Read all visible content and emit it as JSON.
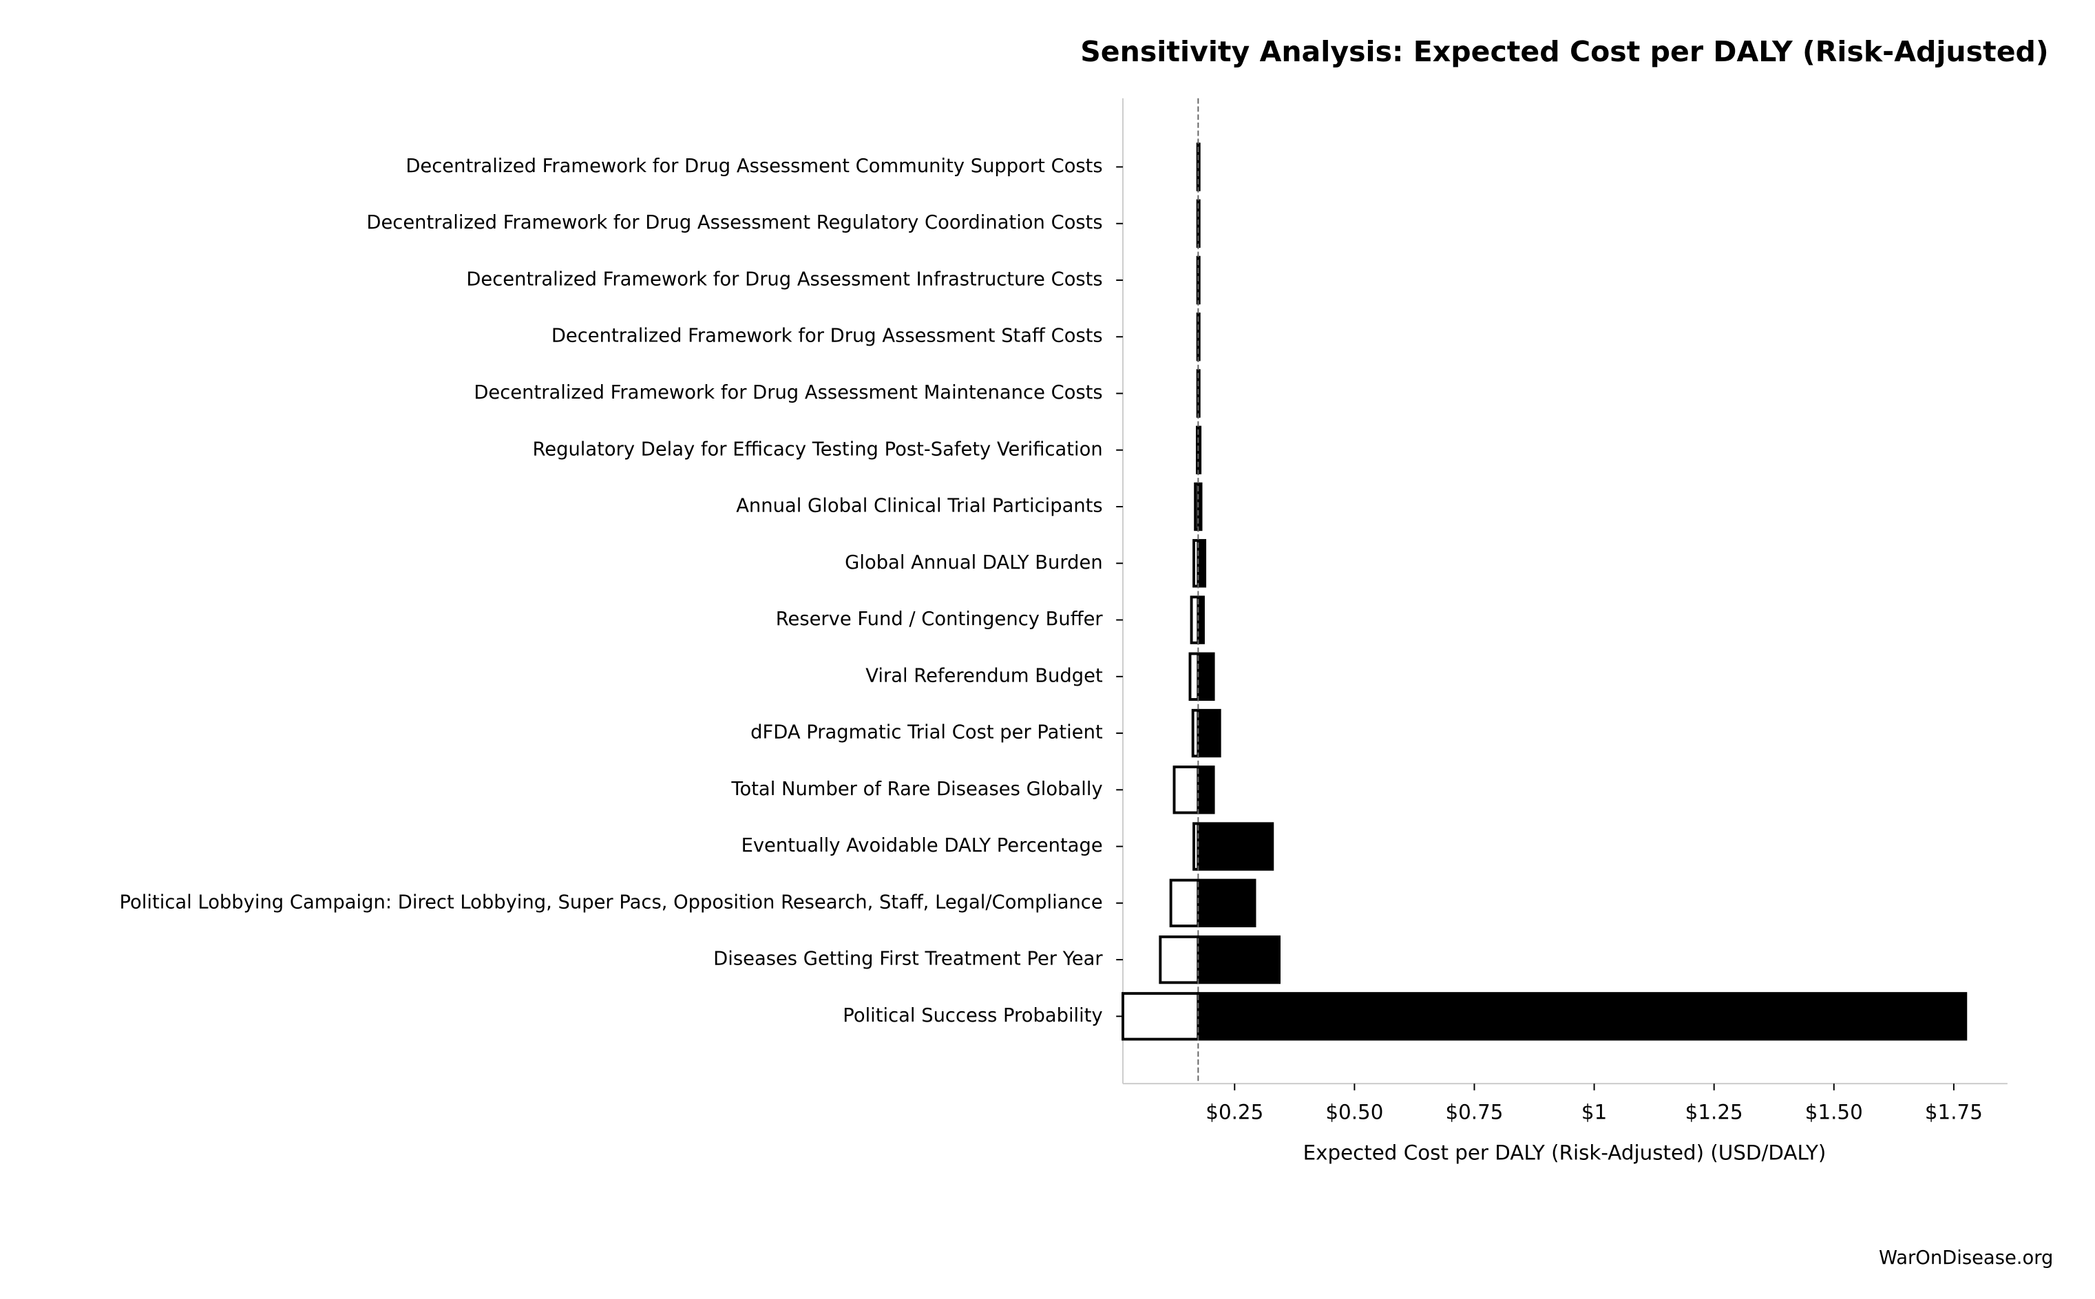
{
  "chart_data": {
    "type": "tornado",
    "title": "Sensitivity Analysis: Expected Cost per DALY (Risk-Adjusted)",
    "xlabel": "Expected Cost per DALY (Risk-Adjusted) (USD/DALY)",
    "footer": "WarOnDisease.org",
    "categories": [
      "Decentralized Framework for Drug Assessment Community Support Costs",
      "Decentralized Framework for Drug Assessment Regulatory Coordination Costs",
      "Decentralized Framework for Drug Assessment Infrastructure Costs",
      "Decentralized Framework for Drug Assessment Staff Costs",
      "Decentralized Framework for Drug Assessment Maintenance Costs",
      "Regulatory Delay for Efficacy Testing Post-Safety Verification",
      "Annual Global Clinical Trial Participants",
      "Global Annual DALY Burden",
      "Reserve Fund / Contingency Buffer",
      "Viral Referendum Budget",
      "dFDA Pragmatic Trial Cost per Patient",
      "Total Number of Rare Diseases Globally",
      "Eventually Avoidable DALY Percentage",
      "Political Lobbying Campaign: Direct Lobbying, Super Pacs, Opposition Research, Staff, Legal/Compliance",
      "Diseases Getting First Treatment Per Year",
      "Political Success Probability"
    ],
    "low_values": [
      0.173,
      0.173,
      0.173,
      0.173,
      0.173,
      0.172,
      0.168,
      0.165,
      0.16,
      0.157,
      0.163,
      0.124,
      0.165,
      0.117,
      0.095,
      0.017
    ],
    "high_values": [
      0.176,
      0.176,
      0.176,
      0.176,
      0.176,
      0.178,
      0.18,
      0.188,
      0.185,
      0.206,
      0.219,
      0.206,
      0.329,
      0.292,
      0.343,
      1.775
    ],
    "baseline": 0.174,
    "low_color": "#ffffff",
    "high_color": "#000000",
    "xlim": [
      0.017,
      1.862
    ],
    "xticks": [
      {
        "value": 0.25,
        "label": "$0.25"
      },
      {
        "value": 0.5,
        "label": "$0.50"
      },
      {
        "value": 0.75,
        "label": "$0.75"
      },
      {
        "value": 1,
        "label": "$1"
      },
      {
        "value": 1.25,
        "label": "$1.25"
      },
      {
        "value": 1.5,
        "label": "$1.50"
      },
      {
        "value": 1.75,
        "label": "$1.75"
      }
    ]
  }
}
